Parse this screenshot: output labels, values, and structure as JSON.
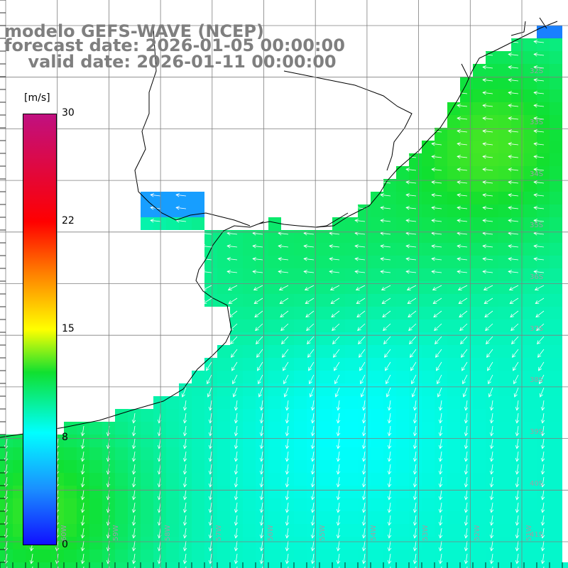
{
  "header": {
    "line1": "modelo GEFS-WAVE (NCEP)",
    "line2": "forecast date: 2026-01-05 00:00:00",
    "line3": "    valid date: 2026-01-11 00:00:00"
  },
  "colorbar": {
    "unit": "[m/s]",
    "ticks": [
      "30",
      "22",
      "15",
      "8",
      "0"
    ],
    "tick_values": [
      30,
      22,
      15,
      8,
      0
    ],
    "range": [
      0,
      30
    ]
  },
  "lat_labels": [
    "32S",
    "33S",
    "34S",
    "35S",
    "36S",
    "37S",
    "38S",
    "39S",
    "40S",
    "41S"
  ],
  "lon_labels": [
    "60W",
    "59W",
    "58W",
    "57W",
    "56W",
    "55W",
    "54W",
    "53W",
    "52W",
    "51W"
  ],
  "map": {
    "extent_lon": [
      -61.0,
      -50.2
    ],
    "extent_lat": [
      -41.6,
      -31.2
    ],
    "gridlines": true,
    "field": "wind speed",
    "colors": {
      "land": "#ffffff",
      "coast": "#000000",
      "grid": "#7f7f7f",
      "arrows": "#ffffff",
      "title": "#7f7f7f"
    }
  }
}
